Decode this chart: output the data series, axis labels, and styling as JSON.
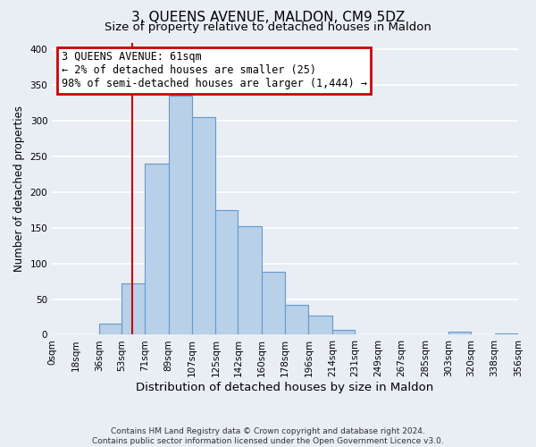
{
  "title": "3, QUEENS AVENUE, MALDON, CM9 5DZ",
  "subtitle": "Size of property relative to detached houses in Maldon",
  "xlabel": "Distribution of detached houses by size in Maldon",
  "ylabel": "Number of detached properties",
  "bin_edges": [
    0,
    18,
    36,
    53,
    71,
    89,
    107,
    125,
    142,
    160,
    178,
    196,
    214,
    231,
    249,
    267,
    285,
    303,
    320,
    338,
    356
  ],
  "bin_labels": [
    "0sqm",
    "18sqm",
    "36sqm",
    "53sqm",
    "71sqm",
    "89sqm",
    "107sqm",
    "125sqm",
    "142sqm",
    "160sqm",
    "178sqm",
    "196sqm",
    "214sqm",
    "231sqm",
    "249sqm",
    "267sqm",
    "285sqm",
    "303sqm",
    "320sqm",
    "338sqm",
    "356sqm"
  ],
  "counts": [
    0,
    0,
    15,
    72,
    240,
    335,
    305,
    175,
    152,
    88,
    42,
    27,
    7,
    0,
    0,
    0,
    0,
    4,
    0,
    2
  ],
  "bar_color": "#b8d0e8",
  "bar_edge_color": "#6699cc",
  "red_line_x": 61,
  "annotation_title": "3 QUEENS AVENUE: 61sqm",
  "annotation_line1": "← 2% of detached houses are smaller (25)",
  "annotation_line2": "98% of semi-detached houses are larger (1,444) →",
  "annotation_box_color": "#ffffff",
  "annotation_box_edge_color": "#cc0000",
  "red_line_color": "#cc0000",
  "ylim": [
    0,
    410
  ],
  "yticks": [
    0,
    50,
    100,
    150,
    200,
    250,
    300,
    350,
    400
  ],
  "footer1": "Contains HM Land Registry data © Crown copyright and database right 2024.",
  "footer2": "Contains public sector information licensed under the Open Government Licence v3.0.",
  "background_color": "#e8eef4",
  "grid_color": "#ffffff",
  "title_fontsize": 11,
  "subtitle_fontsize": 9.5,
  "xlabel_fontsize": 9.5,
  "ylabel_fontsize": 8.5,
  "tick_fontsize": 7.5,
  "annotation_fontsize": 8.5,
  "footer_fontsize": 6.5
}
